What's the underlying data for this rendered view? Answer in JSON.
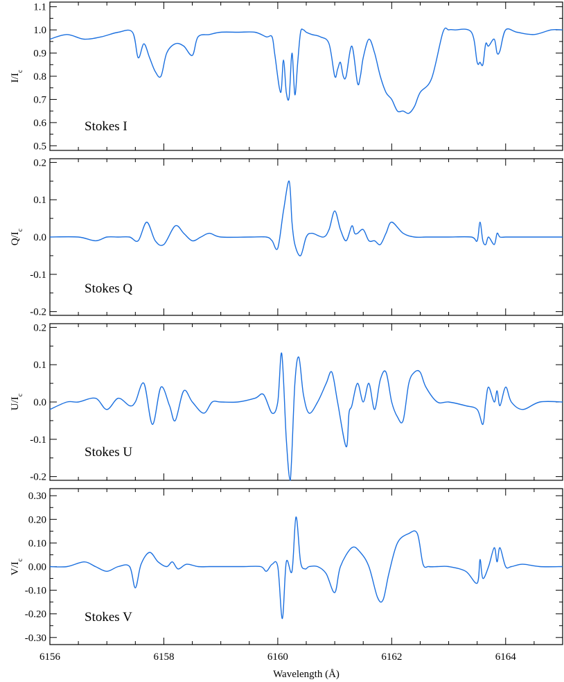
{
  "chart_data": {
    "type": "line",
    "color": "#1a6fdf",
    "xlabel": "Wavelength (Å)",
    "xlim": [
      6156,
      6165
    ],
    "xticks": [
      6156,
      6158,
      6160,
      6162,
      6164
    ],
    "panels": [
      {
        "id": "I",
        "label": "Stokes I",
        "ylabel_main": "I/I",
        "ylabel_sub": "c",
        "ylim": [
          0.48,
          1.12
        ],
        "yticks": [
          0.5,
          0.6,
          0.7,
          0.8,
          0.9,
          1.0,
          1.1
        ],
        "ytick_labels": [
          "0.5",
          "0.6",
          "0.7",
          "0.8",
          "0.9",
          "1.0",
          "1.1"
        ],
        "series": [
          {
            "x": [
              6156.0,
              6156.3,
              6156.6,
              6156.9,
              6157.2,
              6157.45,
              6157.55,
              6157.65,
              6157.75,
              6157.85,
              6157.95,
              6158.05,
              6158.2,
              6158.35,
              6158.5,
              6158.6,
              6158.8,
              6159.0,
              6159.3,
              6159.6,
              6159.8,
              6159.9,
              6159.95,
              6160.05,
              6160.1,
              6160.15,
              6160.2,
              6160.25,
              6160.3,
              6160.35,
              6160.4,
              6160.45,
              6160.5,
              6160.6,
              6160.75,
              6160.9,
              6161.0,
              6161.05,
              6161.1,
              6161.15,
              6161.2,
              6161.3,
              6161.4,
              6161.45,
              6161.5,
              6161.6,
              6161.7,
              6161.8,
              6161.9,
              6162.0,
              6162.1,
              6162.2,
              6162.3,
              6162.4,
              6162.5,
              6162.7,
              6162.9,
              6163.0,
              6163.1,
              6163.4,
              6163.5,
              6163.55,
              6163.6,
              6163.65,
              6163.7,
              6163.8,
              6163.85,
              6163.9,
              6164.0,
              6164.2,
              6164.5,
              6164.8,
              6165.0
            ],
            "y": [
              0.96,
              0.98,
              0.96,
              0.97,
              0.99,
              0.99,
              0.88,
              0.94,
              0.88,
              0.82,
              0.8,
              0.9,
              0.94,
              0.93,
              0.89,
              0.97,
              0.98,
              0.99,
              0.99,
              0.99,
              0.97,
              0.97,
              0.89,
              0.73,
              0.87,
              0.73,
              0.71,
              0.9,
              0.72,
              0.86,
              0.99,
              1.0,
              0.99,
              0.98,
              0.97,
              0.94,
              0.8,
              0.83,
              0.86,
              0.8,
              0.8,
              0.93,
              0.77,
              0.8,
              0.88,
              0.96,
              0.9,
              0.8,
              0.73,
              0.7,
              0.65,
              0.65,
              0.64,
              0.67,
              0.73,
              0.79,
              0.99,
              1.0,
              1.0,
              0.99,
              0.86,
              0.86,
              0.85,
              0.94,
              0.93,
              0.96,
              0.9,
              0.91,
              1.0,
              0.99,
              0.98,
              1.0,
              1.0
            ]
          }
        ]
      },
      {
        "id": "Q",
        "label": "Stokes Q",
        "ylabel_main": "Q/I",
        "ylabel_sub": "c",
        "ylim": [
          -0.21,
          0.21
        ],
        "yticks": [
          -0.2,
          -0.1,
          0.0,
          0.1,
          0.2
        ],
        "ytick_labels": [
          "-0.2",
          "-0.1",
          "0.0",
          "0.1",
          "0.2"
        ],
        "series": [
          {
            "x": [
              6156.0,
              6156.5,
              6156.8,
              6157.0,
              6157.2,
              6157.4,
              6157.55,
              6157.7,
              6157.85,
              6158.0,
              6158.2,
              6158.35,
              6158.5,
              6158.65,
              6158.8,
              6159.0,
              6159.5,
              6159.8,
              6159.9,
              6160.0,
              6160.1,
              6160.2,
              6160.25,
              6160.3,
              6160.4,
              6160.5,
              6160.6,
              6160.8,
              6160.9,
              6161.0,
              6161.1,
              6161.2,
              6161.3,
              6161.35,
              6161.4,
              6161.5,
              6161.6,
              6161.7,
              6161.8,
              6161.9,
              6162.0,
              6162.2,
              6162.4,
              6162.6,
              6162.8,
              6163.0,
              6163.4,
              6163.5,
              6163.55,
              6163.6,
              6163.65,
              6163.7,
              6163.8,
              6163.85,
              6163.9,
              6164.0,
              6164.2,
              6164.4,
              6164.6,
              6165.0
            ],
            "y": [
              0.0,
              0.0,
              -0.01,
              0.0,
              0.0,
              0.0,
              -0.01,
              0.04,
              -0.01,
              -0.02,
              0.03,
              0.01,
              -0.01,
              0.0,
              0.01,
              0.0,
              0.0,
              0.0,
              -0.01,
              -0.03,
              0.07,
              0.15,
              0.04,
              -0.02,
              -0.05,
              0.0,
              0.01,
              0.0,
              0.02,
              0.07,
              0.02,
              -0.01,
              0.03,
              0.01,
              0.01,
              0.02,
              -0.01,
              -0.01,
              -0.02,
              0.01,
              0.04,
              0.01,
              0.0,
              0.0,
              0.0,
              0.0,
              0.0,
              -0.01,
              0.04,
              -0.01,
              -0.02,
              0.0,
              -0.02,
              0.01,
              0.0,
              0.0,
              0.0,
              0.0,
              0.0,
              0.0
            ]
          }
        ]
      },
      {
        "id": "U",
        "label": "Stokes U",
        "ylabel_main": "U/I",
        "ylabel_sub": "c",
        "ylim": [
          -0.21,
          0.21
        ],
        "yticks": [
          -0.2,
          -0.1,
          0.0,
          0.1,
          0.2
        ],
        "ytick_labels": [
          "-0.2",
          "-0.1",
          "0.0",
          "0.1",
          "0.2"
        ],
        "series": [
          {
            "x": [
              6156.0,
              6156.3,
              6156.5,
              6156.8,
              6157.0,
              6157.2,
              6157.4,
              6157.5,
              6157.65,
              6157.8,
              6157.95,
              6158.1,
              6158.2,
              6158.35,
              6158.5,
              6158.7,
              6158.85,
              6159.0,
              6159.3,
              6159.6,
              6159.75,
              6159.9,
              6160.0,
              6160.07,
              6160.15,
              6160.22,
              6160.3,
              6160.37,
              6160.45,
              6160.55,
              6160.7,
              6160.85,
              6160.95,
              6161.05,
              6161.2,
              6161.25,
              6161.3,
              6161.4,
              6161.5,
              6161.6,
              6161.7,
              6161.8,
              6161.9,
              6162.0,
              6162.1,
              6162.2,
              6162.3,
              6162.4,
              6162.5,
              6162.6,
              6162.8,
              6163.0,
              6163.3,
              6163.5,
              6163.6,
              6163.65,
              6163.7,
              6163.8,
              6163.85,
              6163.9,
              6164.0,
              6164.1,
              6164.3,
              6164.6,
              6165.0
            ],
            "y": [
              -0.02,
              0.0,
              0.0,
              0.01,
              -0.02,
              0.01,
              -0.01,
              0.0,
              0.05,
              -0.06,
              0.04,
              -0.01,
              -0.05,
              0.03,
              0.0,
              -0.03,
              0.0,
              0.0,
              0.0,
              0.01,
              0.02,
              -0.03,
              0.0,
              0.13,
              -0.1,
              -0.22,
              0.05,
              0.12,
              0.02,
              -0.03,
              0.0,
              0.05,
              0.08,
              0.0,
              -0.12,
              -0.03,
              -0.01,
              0.05,
              0.0,
              0.05,
              -0.02,
              0.06,
              0.08,
              0.0,
              -0.04,
              -0.05,
              0.05,
              0.08,
              0.08,
              0.04,
              0.0,
              0.0,
              -0.01,
              -0.02,
              -0.06,
              0.0,
              0.04,
              0.0,
              0.03,
              -0.01,
              0.04,
              0.0,
              -0.02,
              0.0,
              0.0
            ]
          }
        ]
      },
      {
        "id": "V",
        "label": "Stokes V",
        "ylabel_main": "V/I",
        "ylabel_sub": "c",
        "ylim": [
          -0.33,
          0.33
        ],
        "yticks": [
          -0.3,
          -0.2,
          -0.1,
          0.0,
          0.1,
          0.2,
          0.3
        ],
        "ytick_labels": [
          "-0.30",
          "-0.20",
          "-0.10",
          "0.00",
          "0.10",
          "0.20",
          "0.30"
        ],
        "series": [
          {
            "x": [
              6156.0,
              6156.3,
              6156.6,
              6156.8,
              6157.0,
              6157.2,
              6157.4,
              6157.5,
              6157.6,
              6157.75,
              6157.9,
              6158.05,
              6158.15,
              6158.25,
              6158.4,
              6158.6,
              6158.8,
              6159.0,
              6159.4,
              6159.7,
              6159.8,
              6159.9,
              6160.0,
              6160.08,
              6160.15,
              6160.25,
              6160.32,
              6160.4,
              6160.48,
              6160.55,
              6160.7,
              6160.85,
              6161.0,
              6161.1,
              6161.3,
              6161.45,
              6161.6,
              6161.75,
              6161.85,
              6161.95,
              6162.1,
              6162.3,
              6162.45,
              6162.55,
              6162.65,
              6162.8,
              6163.0,
              6163.3,
              6163.5,
              6163.55,
              6163.6,
              6163.7,
              6163.8,
              6163.85,
              6163.9,
              6164.0,
              6164.1,
              6164.3,
              6164.6,
              6165.0
            ],
            "y": [
              0.0,
              0.0,
              0.02,
              0.0,
              -0.02,
              0.0,
              0.0,
              -0.09,
              0.01,
              0.06,
              0.02,
              0.0,
              0.02,
              -0.01,
              0.01,
              0.0,
              0.0,
              0.0,
              0.0,
              0.0,
              -0.02,
              0.01,
              0.0,
              -0.22,
              0.02,
              -0.02,
              0.21,
              0.02,
              -0.01,
              0.0,
              0.0,
              -0.03,
              -0.11,
              0.0,
              0.08,
              0.06,
              0.0,
              -0.13,
              -0.14,
              -0.03,
              0.1,
              0.14,
              0.14,
              0.01,
              0.0,
              0.0,
              0.0,
              -0.02,
              -0.07,
              0.03,
              -0.05,
              0.0,
              0.08,
              0.02,
              0.08,
              0.0,
              0.0,
              0.01,
              0.0,
              0.0
            ]
          }
        ]
      }
    ]
  }
}
